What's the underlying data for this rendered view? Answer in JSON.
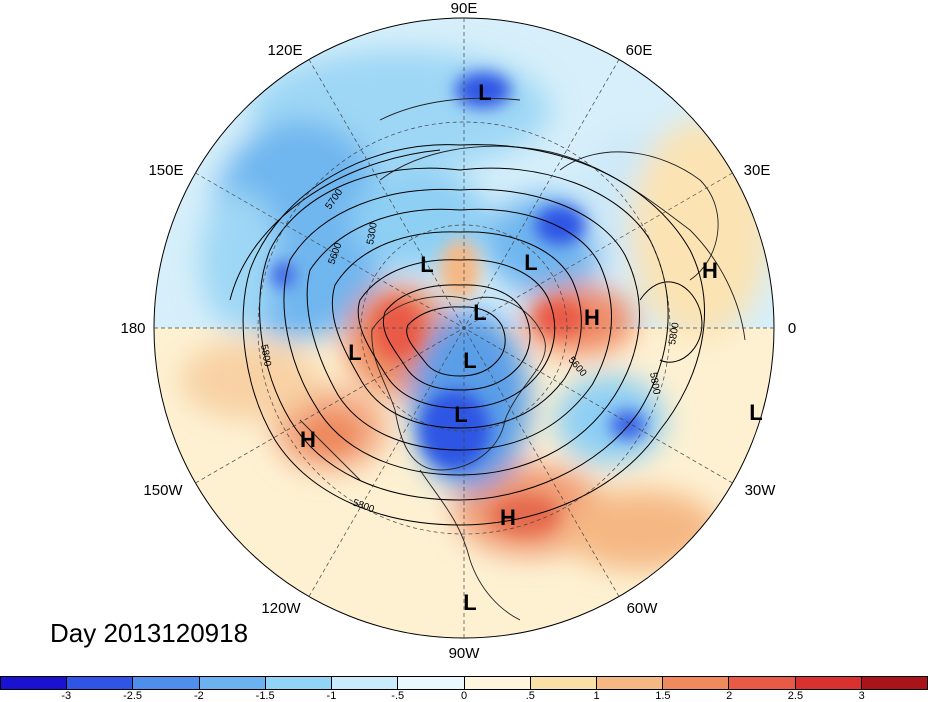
{
  "title": "Day 2013120918",
  "longitude_labels": {
    "lon_90e": "90E",
    "lon_60e": "60E",
    "lon_30e": "30E",
    "lon_0": "0",
    "lon_30w": "30W",
    "lon_60w": "60W",
    "lon_90w": "90W",
    "lon_120w": "120W",
    "lon_150w": "150W",
    "lon_180": "180",
    "lon_150e": "150E",
    "lon_120e": "120E"
  },
  "pressure_centers": [
    {
      "type": "L",
      "label": "L"
    },
    {
      "type": "L",
      "label": "L"
    },
    {
      "type": "L",
      "label": "L"
    },
    {
      "type": "H",
      "label": "H"
    },
    {
      "type": "L",
      "label": "L"
    },
    {
      "type": "H",
      "label": "H"
    },
    {
      "type": "L",
      "label": "L"
    },
    {
      "type": "L",
      "label": "L"
    },
    {
      "type": "L",
      "label": "L"
    },
    {
      "type": "H",
      "label": "H"
    },
    {
      "type": "L",
      "label": "L"
    },
    {
      "type": "H",
      "label": "H"
    },
    {
      "type": "L",
      "label": "L"
    }
  ],
  "contour_labels": {
    "c1": "5700",
    "c2": "5300",
    "c3": "5600",
    "c4": "5800",
    "c5": "5600",
    "c6": "5800",
    "c7": "5800",
    "c8": "5800"
  },
  "colorbar": {
    "colors": [
      "#1a12d0",
      "#2f55e4",
      "#4f8eec",
      "#6cb1f0",
      "#92d4f6",
      "#c8ecfb",
      "#e9f8fc",
      "#fdf6dc",
      "#f9e0a6",
      "#f5b884",
      "#ee8a5e",
      "#e95a46",
      "#d9312f",
      "#a9141b"
    ],
    "labels": [
      "-3",
      "-2.5",
      "-2",
      "-1.5",
      "-1",
      "-.5",
      "0",
      ".5",
      "1",
      "1.5",
      "2",
      "2.5",
      "3"
    ]
  }
}
